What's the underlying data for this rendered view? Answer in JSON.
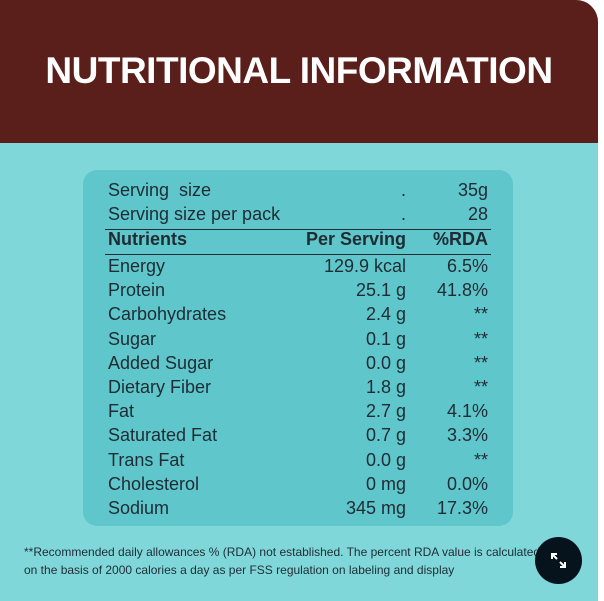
{
  "header": {
    "title": "NUTRITIONAL INFORMATION"
  },
  "serving": [
    {
      "label": "Serving  size",
      "separator": ".",
      "value": "35g"
    },
    {
      "label": "Serving size per pack",
      "separator": ".",
      "value": "28"
    }
  ],
  "table": {
    "columns": [
      "Nutrients",
      "Per Serving",
      "%RDA"
    ],
    "rows": [
      [
        "Energy",
        "129.9 kcal",
        "6.5%"
      ],
      [
        "Protein",
        "25.1 g",
        "41.8%"
      ],
      [
        "Carbohydrates",
        "2.4 g",
        "**"
      ],
      [
        "Sugar",
        "0.1 g",
        "**"
      ],
      [
        "Added Sugar",
        "0.0 g",
        "**"
      ],
      [
        "Dietary Fiber",
        "1.8 g",
        "**"
      ],
      [
        "Fat",
        "2.7 g",
        "4.1%"
      ],
      [
        "Saturated Fat",
        "0.7 g",
        "3.3%"
      ],
      [
        "Trans Fat",
        "0.0 g",
        "**"
      ],
      [
        "Cholesterol",
        "0 mg",
        "0.0%"
      ],
      [
        "Sodium",
        "345 mg",
        "17.3%"
      ]
    ]
  },
  "footnote": [
    "**Recommended daily allowances % (RDA) not established. The percent RDA value is calculated",
    "on the basis of 2000 calories a day as per FSS regulation on labeling and display"
  ]
}
